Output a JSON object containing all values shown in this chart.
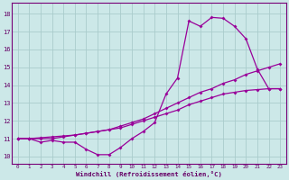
{
  "xlabel": "Windchill (Refroidissement éolien,°C)",
  "bg_color": "#cce8e8",
  "grid_color": "#aacccc",
  "line_color": "#990099",
  "xlim": [
    -0.5,
    23.5
  ],
  "ylim": [
    9.6,
    18.6
  ],
  "yticks": [
    10,
    11,
    12,
    13,
    14,
    15,
    16,
    17,
    18
  ],
  "xticks": [
    0,
    1,
    2,
    3,
    4,
    5,
    6,
    7,
    8,
    9,
    10,
    11,
    12,
    13,
    14,
    15,
    16,
    17,
    18,
    19,
    20,
    21,
    22,
    23
  ],
  "curve1_x": [
    0,
    1,
    2,
    3,
    4,
    5,
    6,
    7,
    8,
    9,
    10,
    11,
    12,
    13,
    14,
    15,
    16,
    17,
    18,
    19,
    20,
    21,
    22,
    23
  ],
  "curve1_y": [
    11.0,
    11.0,
    10.8,
    10.9,
    10.8,
    10.8,
    10.4,
    10.1,
    10.1,
    10.5,
    11.0,
    11.4,
    11.9,
    13.5,
    14.4,
    17.6,
    17.3,
    17.8,
    17.75,
    17.3,
    16.6,
    14.9,
    13.8,
    13.8
  ],
  "curve2_x": [
    0,
    1,
    2,
    3,
    4,
    5,
    6,
    7,
    8,
    9,
    10,
    11,
    12,
    13,
    14,
    15,
    16,
    17,
    18,
    19,
    20,
    21,
    22,
    23
  ],
  "curve2_y": [
    11.0,
    11.0,
    11.0,
    11.0,
    11.1,
    11.2,
    11.3,
    11.4,
    11.5,
    11.6,
    11.8,
    12.0,
    12.2,
    12.4,
    12.6,
    12.9,
    13.1,
    13.3,
    13.5,
    13.6,
    13.7,
    13.75,
    13.8,
    13.8
  ],
  "curve3_x": [
    0,
    1,
    2,
    3,
    4,
    5,
    6,
    7,
    8,
    9,
    10,
    11,
    12,
    13,
    14,
    15,
    16,
    17,
    18,
    19,
    20,
    21,
    22,
    23
  ],
  "curve3_y": [
    11.0,
    11.0,
    11.05,
    11.1,
    11.15,
    11.2,
    11.3,
    11.4,
    11.5,
    11.7,
    11.9,
    12.1,
    12.4,
    12.7,
    13.0,
    13.3,
    13.6,
    13.8,
    14.1,
    14.3,
    14.6,
    14.8,
    15.0,
    15.2
  ]
}
